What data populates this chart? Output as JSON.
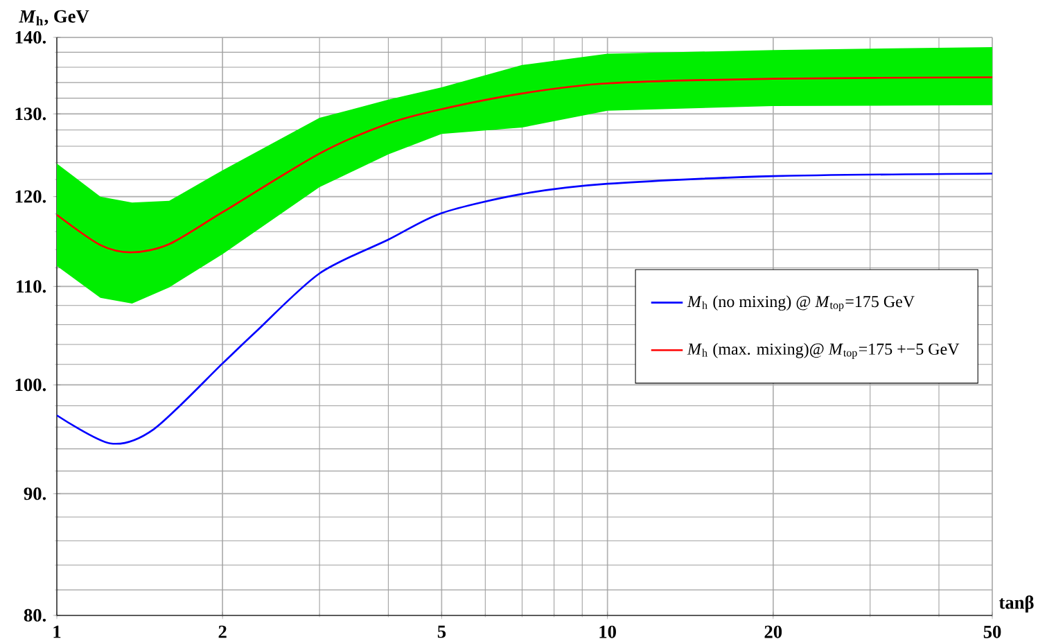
{
  "chart_data": {
    "type": "line",
    "xlabel": "tanβ",
    "ylabel": "*M*$_{h}$, GeV",
    "log": "xy",
    "xlim": [
      1,
      50
    ],
    "ylim": [
      80,
      140
    ],
    "xticks": [
      1,
      2,
      5,
      10,
      20,
      50
    ],
    "yticks": [
      {
        "value": 80,
        "label": "80."
      },
      {
        "value": 90,
        "label": "90."
      },
      {
        "value": 100,
        "label": "100."
      },
      {
        "value": 110,
        "label": "110."
      },
      {
        "value": 120,
        "label": "120."
      },
      {
        "value": 130,
        "label": "130."
      },
      {
        "value": 140,
        "label": "140."
      }
    ],
    "grid": true,
    "legend": "right",
    "series": [
      {
        "name": "*M*$_{h}$ (no mixing) @ *M*$_{top}$=175 GeV",
        "color": "#0000ff",
        "x": [
          1,
          1.25,
          1.5,
          2,
          2.3,
          3,
          4,
          5,
          7,
          10,
          20,
          50
        ],
        "values": [
          97.1,
          94.5,
          95.8,
          102.1,
          105.3,
          111.4,
          115.1,
          118.1,
          120.3,
          121.5,
          122.4,
          122.7
        ]
      },
      {
        "name": "*M*$_{h}$ (max. mixing)@ *M*$_{top}$=175 +−5 GeV",
        "color": "#ff0000",
        "x": [
          1,
          1.2,
          1.37,
          1.6,
          2,
          3,
          4,
          5,
          7,
          10,
          20,
          50
        ],
        "values": [
          117.9,
          114.5,
          113.7,
          114.6,
          118.2,
          125.1,
          128.8,
          130.6,
          132.6,
          133.9,
          134.5,
          134.7
        ],
        "lower": [
          112.2,
          108.8,
          108.2,
          109.9,
          113.5,
          121.1,
          125.0,
          127.5,
          128.3,
          130.4,
          131.0,
          131.1
        ],
        "upper": [
          123.9,
          120.0,
          119.3,
          119.5,
          123.1,
          129.5,
          131.8,
          133.4,
          136.3,
          137.8,
          138.3,
          138.7
        ]
      }
    ]
  }
}
